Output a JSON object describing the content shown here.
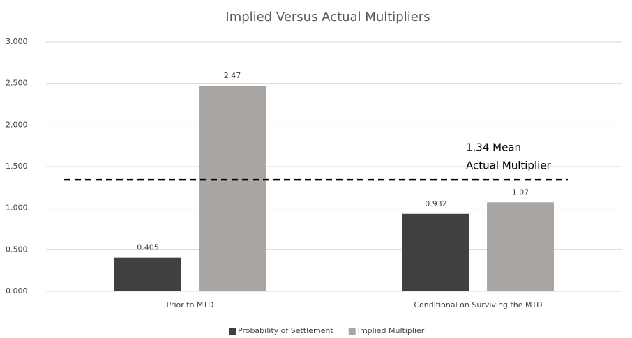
{
  "chart_data": {
    "type": "bar",
    "title": "Implied Versus Actual Multipliers",
    "categories": [
      "Prior to MTD",
      "Conditional on Surviving the MTD"
    ],
    "series": [
      {
        "name": "Probability of Settlement",
        "color": "#404040",
        "values": [
          0.405,
          0.932
        ]
      },
      {
        "name": "Implied Multiplier",
        "color": "#aaa6a4",
        "values": [
          2.47,
          1.07
        ]
      }
    ],
    "ylim": [
      0,
      3
    ],
    "yticks": [
      {
        "value": 0,
        "label": "0.000"
      },
      {
        "value": 0.5,
        "label": "0.500"
      },
      {
        "value": 1,
        "label": "1.000"
      },
      {
        "value": 1.5,
        "label": "1.500"
      },
      {
        "value": 2,
        "label": "2.000"
      },
      {
        "value": 2.5,
        "label": "2.500"
      },
      {
        "value": 3,
        "label": "3.000"
      }
    ],
    "grid": true,
    "legend": "bottom",
    "annotation": {
      "value": 1.34,
      "lines": [
        "1.34 Mean",
        "Actual Multiplier"
      ]
    }
  }
}
